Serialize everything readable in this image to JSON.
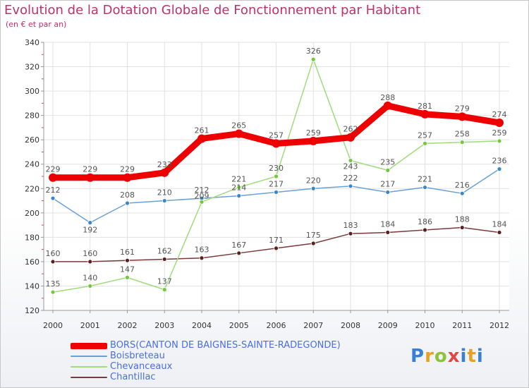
{
  "header": {
    "title": "Evolution de la Dotation Globale de Fonctionnement par Habitant",
    "subtitle": "(en € et par an)"
  },
  "logo": {
    "text": "Proxiti",
    "colors": [
      "#3a7fd6",
      "#e8a020",
      "#8bc43a",
      "#e04848",
      "#3a7fd6",
      "#e8a020",
      "#3a7fd6"
    ]
  },
  "chart_data": {
    "type": "line",
    "title": "Evolution de la Dotation Globale de Fonctionnement par Habitant",
    "subtitle": "(en € et par an)",
    "xlabel": "",
    "ylabel": "",
    "ylim": [
      120,
      340
    ],
    "yticks": [
      120,
      140,
      160,
      180,
      200,
      220,
      240,
      260,
      280,
      300,
      320,
      340
    ],
    "grid": true,
    "legend_position": "bottom",
    "x": [
      "2000",
      "2001",
      "2002",
      "2003",
      "2004",
      "2005",
      "2006",
      "2007",
      "2008",
      "2009",
      "2010",
      "2011",
      "2012"
    ],
    "series": [
      {
        "name": "BORS(CANTON DE BAIGNES-SAINTE-RADEGONDE)",
        "color": "#ee0000",
        "emphasis": true,
        "values": [
          229,
          229,
          229,
          233,
          261,
          265,
          257,
          259,
          262,
          288,
          281,
          279,
          274
        ]
      },
      {
        "name": "Boisbreteau",
        "color": "#6aa0d8",
        "marker_color": "#3a86cc",
        "values": [
          212,
          192,
          208,
          210,
          212,
          214,
          217,
          220,
          222,
          217,
          221,
          216,
          236
        ]
      },
      {
        "name": "Chevanceaux",
        "color": "#9fdc7c",
        "marker_color": "#74c83c",
        "values": [
          135,
          140,
          147,
          137,
          209,
          221,
          230,
          326,
          243,
          235,
          257,
          258,
          259
        ]
      },
      {
        "name": "Chantillac",
        "color": "#7a3a3a",
        "marker_color": "#5a1f1f",
        "values": [
          160,
          160,
          161,
          162,
          163,
          167,
          171,
          175,
          183,
          184,
          186,
          188,
          184
        ]
      }
    ]
  }
}
